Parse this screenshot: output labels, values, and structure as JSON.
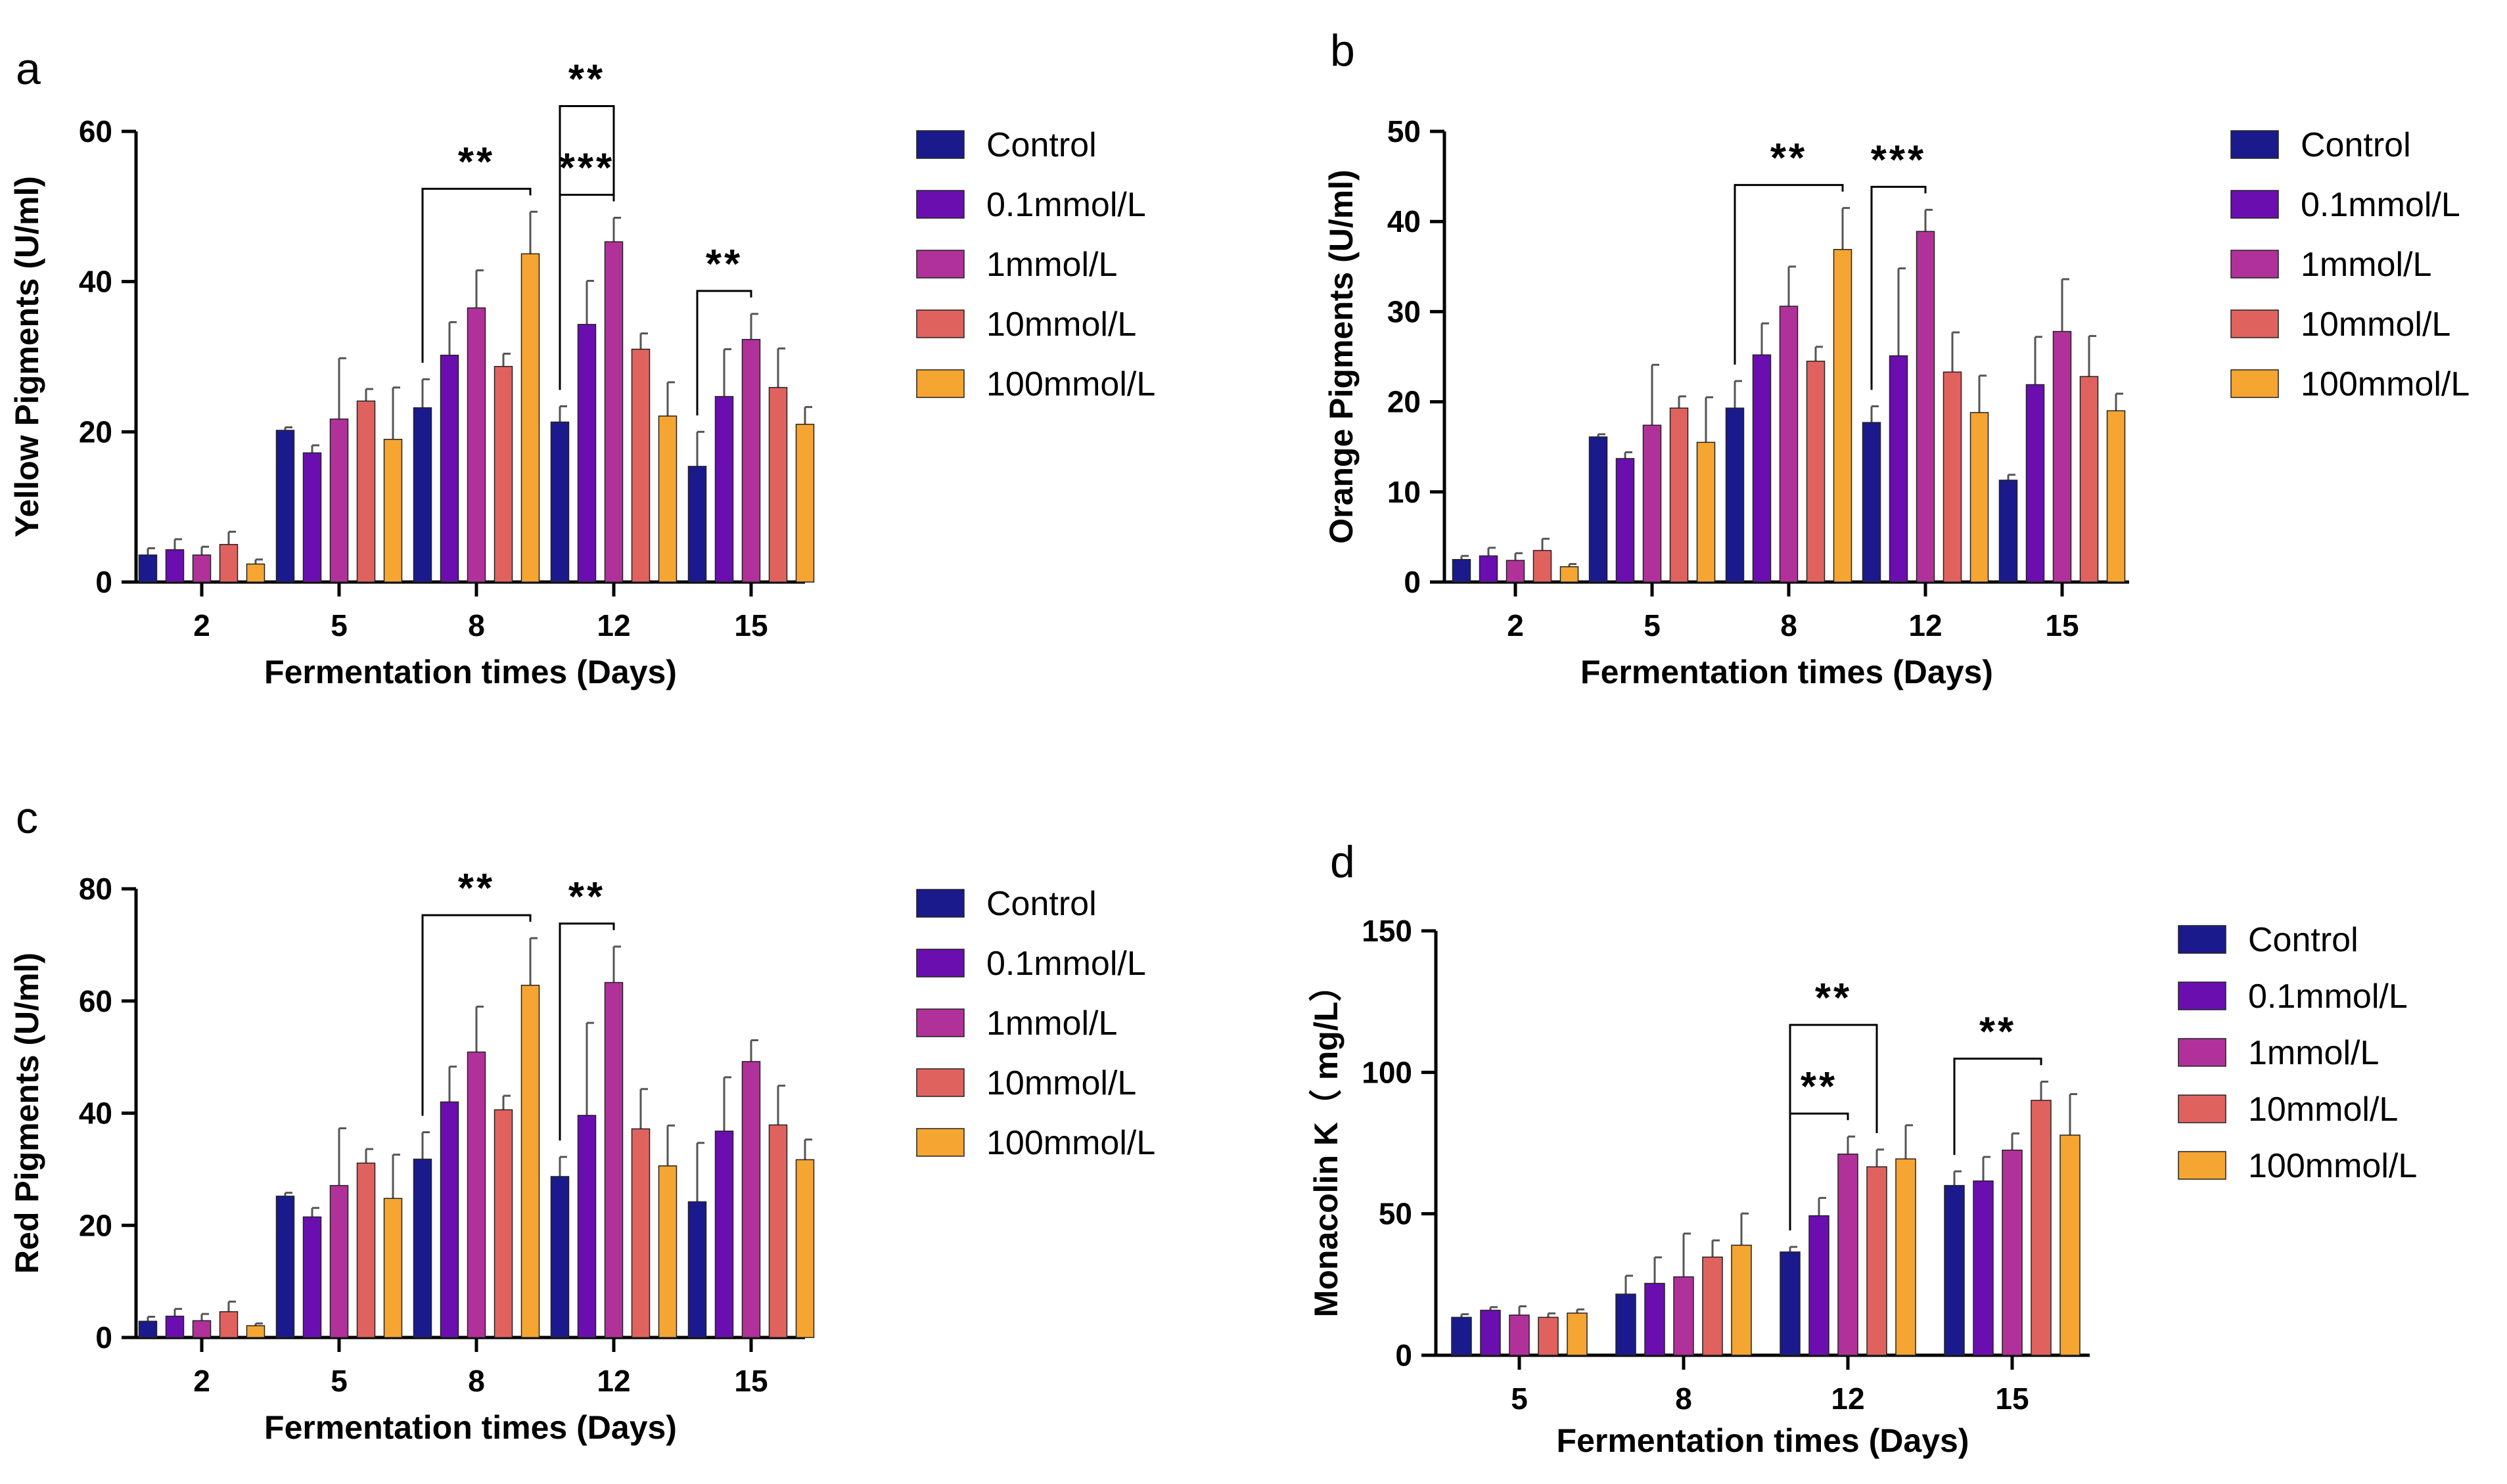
{
  "colors": [
    "#1a1a8c",
    "#6a0eb0",
    "#b1319a",
    "#e0625f",
    "#f5a531"
  ],
  "series_names": [
    "Control",
    "0.1mmol/L",
    "1mmol/L",
    "10mmol/L",
    "100mmol/L"
  ],
  "chart_data": [
    {
      "panel": "a",
      "type": "bar",
      "title": "",
      "xlabel": "Fermentation times (Days)",
      "ylabel": "Yellow Pigments (U/ml)",
      "ylim": [
        0,
        60
      ],
      "yticks": [
        0,
        20,
        40,
        60
      ],
      "categories": [
        "2",
        "5",
        "8",
        "12",
        "15"
      ],
      "series": [
        {
          "name": "Control",
          "values": [
            3.6,
            20.2,
            23.2,
            21.3,
            15.4
          ],
          "errors": [
            0.9,
            0.4,
            3.8,
            2.1,
            4.6
          ]
        },
        {
          "name": "0.1mmol/L",
          "values": [
            4.3,
            17.2,
            30.2,
            34.3,
            24.7
          ],
          "errors": [
            1.4,
            1.0,
            4.4,
            5.8,
            6.3
          ]
        },
        {
          "name": "1mmol/L",
          "values": [
            3.6,
            21.7,
            36.5,
            45.3,
            32.3
          ],
          "errors": [
            1.1,
            8.1,
            5.0,
            3.2,
            3.4
          ]
        },
        {
          "name": "10mmol/L",
          "values": [
            5.0,
            24.1,
            28.7,
            31.0,
            25.9
          ],
          "errors": [
            1.7,
            1.6,
            1.7,
            2.1,
            5.2
          ]
        },
        {
          "name": "100mmol/L",
          "values": [
            2.4,
            19.0,
            43.7,
            22.1,
            21.0
          ],
          "errors": [
            0.6,
            6.9,
            5.6,
            4.5,
            2.3
          ]
        }
      ],
      "significance": [
        {
          "label": "**",
          "category": "8",
          "from": 0,
          "to": 4,
          "level": 1
        },
        {
          "label": "***",
          "category": "12",
          "from": 0,
          "to": 2,
          "level": 1
        },
        {
          "label": "**",
          "category": "12",
          "from": 0,
          "to": 2,
          "level": 2
        },
        {
          "label": "**",
          "category": "15",
          "from": 0,
          "to": 2,
          "level": 1
        }
      ]
    },
    {
      "panel": "b",
      "type": "bar",
      "title": "",
      "xlabel": "Fermentation times (Days)",
      "ylabel": "Orange Pigments (U/ml)",
      "ylim": [
        0,
        50
      ],
      "yticks": [
        0,
        10,
        20,
        30,
        40,
        50
      ],
      "categories": [
        "2",
        "5",
        "8",
        "12",
        "15"
      ],
      "series": [
        {
          "name": "Control",
          "values": [
            2.5,
            16.1,
            19.3,
            17.7,
            11.3
          ],
          "errors": [
            0.4,
            0.3,
            3.0,
            1.8,
            0.6
          ]
        },
        {
          "name": "0.1mmol/L",
          "values": [
            2.9,
            13.7,
            25.2,
            25.1,
            21.9
          ],
          "errors": [
            0.9,
            0.7,
            3.5,
            9.7,
            5.3
          ]
        },
        {
          "name": "1mmol/L",
          "values": [
            2.4,
            17.4,
            30.6,
            38.9,
            27.8
          ],
          "errors": [
            0.8,
            6.7,
            4.4,
            2.4,
            5.8
          ]
        },
        {
          "name": "10mmol/L",
          "values": [
            3.5,
            19.3,
            24.5,
            23.3,
            22.8
          ],
          "errors": [
            1.3,
            1.3,
            1.6,
            4.4,
            4.5
          ]
        },
        {
          "name": "100mmol/L",
          "values": [
            1.7,
            15.5,
            36.9,
            18.8,
            19.0
          ],
          "errors": [
            0.3,
            5.0,
            4.6,
            4.1,
            1.9
          ]
        }
      ],
      "significance": [
        {
          "label": "**",
          "category": "8",
          "from": 0,
          "to": 4,
          "level": 1
        },
        {
          "label": "***",
          "category": "12",
          "from": 0,
          "to": 2,
          "level": 1
        }
      ]
    },
    {
      "panel": "c",
      "type": "bar",
      "title": "",
      "xlabel": "Fermentation times (Days)",
      "ylabel": "Red Pigments (U/ml)",
      "ylim": [
        0,
        80
      ],
      "yticks": [
        0,
        20,
        40,
        60,
        80
      ],
      "categories": [
        "2",
        "5",
        "8",
        "12",
        "15"
      ],
      "series": [
        {
          "name": "Control",
          "values": [
            2.9,
            25.2,
            31.8,
            28.7,
            24.2
          ],
          "errors": [
            0.8,
            0.6,
            4.8,
            3.5,
            10.5
          ]
        },
        {
          "name": "0.1mmol/L",
          "values": [
            3.8,
            21.5,
            42.0,
            39.6,
            36.8
          ],
          "errors": [
            1.3,
            1.6,
            6.3,
            16.5,
            9.6
          ]
        },
        {
          "name": "1mmol/L",
          "values": [
            3.0,
            27.1,
            50.9,
            63.3,
            49.2
          ],
          "errors": [
            1.2,
            10.2,
            8.1,
            6.4,
            3.8
          ]
        },
        {
          "name": "10mmol/L",
          "values": [
            4.6,
            31.1,
            40.6,
            37.2,
            37.9
          ],
          "errors": [
            1.8,
            2.5,
            2.5,
            7.1,
            7.0
          ]
        },
        {
          "name": "100mmol/L",
          "values": [
            2.1,
            24.8,
            62.8,
            30.6,
            31.7
          ],
          "errors": [
            0.4,
            7.8,
            8.4,
            7.2,
            3.6
          ]
        }
      ],
      "significance": [
        {
          "label": "**",
          "category": "8",
          "from": 0,
          "to": 4,
          "level": 1
        },
        {
          "label": "**",
          "category": "12",
          "from": 0,
          "to": 2,
          "level": 1
        }
      ]
    },
    {
      "panel": "d",
      "type": "bar",
      "title": "",
      "xlabel": "Fermentation times (Days)",
      "ylabel": "Monacolin K（ mg/L）",
      "ylim": [
        0,
        150
      ],
      "yticks": [
        0,
        50,
        100,
        150
      ],
      "categories": [
        "5",
        "8",
        "12",
        "15"
      ],
      "series": [
        {
          "name": "Control",
          "values": [
            13.4,
            21.6,
            36.5,
            60.0
          ],
          "errors": [
            1.1,
            6.5,
            1.8,
            5.0
          ]
        },
        {
          "name": "0.1mmol/L",
          "values": [
            15.9,
            25.4,
            49.3,
            61.6
          ],
          "errors": [
            1.1,
            9.2,
            6.3,
            8.5
          ]
        },
        {
          "name": "1mmol/L",
          "values": [
            14.2,
            27.7,
            71.1,
            72.5
          ],
          "errors": [
            3.1,
            15.3,
            6.2,
            5.9
          ]
        },
        {
          "name": "10mmol/L",
          "values": [
            13.4,
            34.7,
            66.6,
            90.1
          ],
          "errors": [
            1.4,
            5.9,
            6.1,
            6.6
          ]
        },
        {
          "name": "100mmol/L",
          "values": [
            14.9,
            38.9,
            69.4,
            77.8
          ],
          "errors": [
            1.3,
            11.2,
            11.9,
            14.5
          ]
        }
      ],
      "significance": [
        {
          "label": "**",
          "category": "12",
          "from": 0,
          "to": 2,
          "level": 1
        },
        {
          "label": "**",
          "category": "12",
          "from": 0,
          "to": 3,
          "level": 2
        },
        {
          "label": "**",
          "category": "15",
          "from": 0,
          "to": 3,
          "level": 1
        }
      ]
    }
  ]
}
